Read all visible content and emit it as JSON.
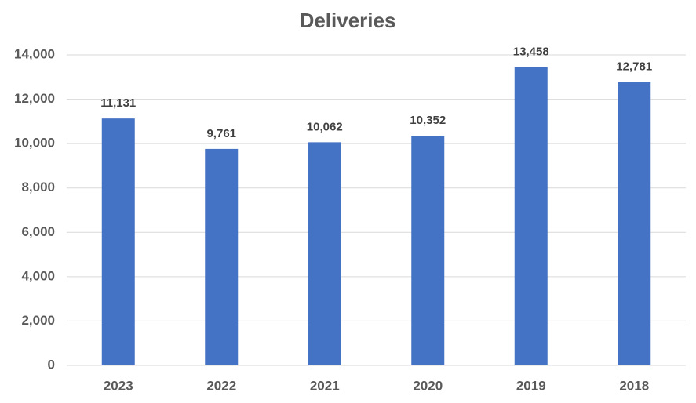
{
  "chart_data": {
    "type": "bar",
    "title": "Deliveries",
    "categories": [
      "2023",
      "2022",
      "2021",
      "2020",
      "2019",
      "2018"
    ],
    "values": [
      11131,
      9761,
      10062,
      10352,
      13458,
      12781
    ],
    "value_labels": [
      "11,131",
      "9,761",
      "10,062",
      "10,352",
      "13,458",
      "12,781"
    ],
    "color": "#4472c4",
    "ylim": [
      0,
      14000
    ],
    "yticks": [
      0,
      {
        "value": 2000,
        "label": "2,000"
      },
      {
        "value": 4000,
        "label": "4,000"
      },
      {
        "value": 6000,
        "label": "6,000"
      },
      {
        "value": 8000,
        "label": "8,000"
      },
      {
        "value": 10000,
        "label": "10,000"
      },
      {
        "value": 12000,
        "label": "12,000"
      },
      {
        "value": 14000,
        "label": "14,000"
      }
    ],
    "grid": true
  }
}
